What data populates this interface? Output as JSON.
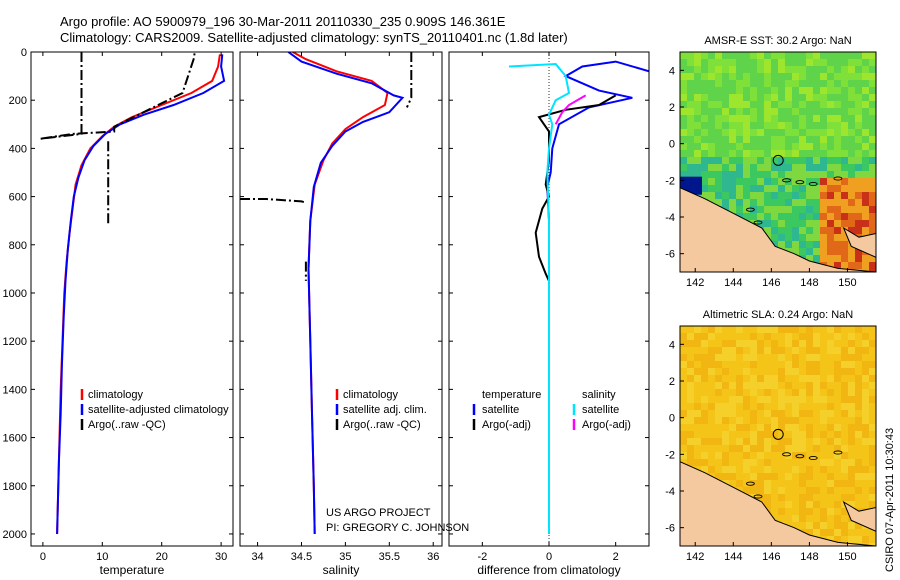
{
  "title_line1": "Argo profile: AO 5900979_196 30-Mar-2011 20110330_235 0.909S 146.361E",
  "title_line2": "Climatology: CARS2009. Satellite-adjusted climatology: synTS_20110401.nc (1.8d later)",
  "credit_line1": "US ARGO PROJECT",
  "credit_line2": "PI: GREGORY C. JOHNSON",
  "stamp": "CSIRO 07-Apr-2011 10:30:43",
  "colors": {
    "climatology": "#ff0000",
    "satellite": "#0000ff",
    "argo": "#000000",
    "sal_satellite": "#00e5ff",
    "sal_argo": "#ff00ff",
    "land": "#f5c9a0"
  },
  "chart_data": [
    {
      "type": "line",
      "xlabel": "temperature",
      "xlim": [
        -2,
        32
      ],
      "ylim": [
        2050,
        0
      ],
      "xticks": [
        0,
        10,
        20,
        30
      ],
      "yticks": [
        0,
        200,
        400,
        600,
        800,
        1000,
        1200,
        1400,
        1600,
        1800,
        2000
      ],
      "legend": [
        "climatology",
        "satellite-adjusted climatology",
        "Argo(..raw -QC)"
      ],
      "series": [
        {
          "name": "climatology",
          "points": [
            [
              29.8,
              10
            ],
            [
              29.5,
              60
            ],
            [
              28.5,
              120
            ],
            [
              25,
              170
            ],
            [
              20,
              220
            ],
            [
              15,
              270
            ],
            [
              12,
              310
            ],
            [
              10,
              350
            ],
            [
              8,
              400
            ],
            [
              6.5,
              470
            ],
            [
              5.5,
              550
            ],
            [
              5,
              650
            ],
            [
              4.5,
              750
            ],
            [
              4,
              870
            ],
            [
              3.6,
              1000
            ],
            [
              3.3,
              1200
            ],
            [
              3,
              1400
            ],
            [
              2.8,
              1600
            ],
            [
              2.6,
              1800
            ],
            [
              2.4,
              2000
            ]
          ]
        },
        {
          "name": "satellite-adjusted climatology",
          "points": [
            [
              30.2,
              10
            ],
            [
              30,
              60
            ],
            [
              30.5,
              120
            ],
            [
              27,
              170
            ],
            [
              22,
              220
            ],
            [
              17,
              260
            ],
            [
              13,
              300
            ],
            [
              10.5,
              340
            ],
            [
              8.5,
              390
            ],
            [
              7,
              450
            ],
            [
              6,
              520
            ],
            [
              5.2,
              600
            ],
            [
              4.7,
              700
            ],
            [
              4.2,
              820
            ],
            [
              3.8,
              950
            ],
            [
              3.5,
              1100
            ],
            [
              3.2,
              1300
            ],
            [
              3,
              1500
            ],
            [
              2.7,
              1700
            ],
            [
              2.5,
              1900
            ],
            [
              2.4,
              2000
            ]
          ]
        },
        {
          "name": "Argo(..raw -QC)",
          "points": [
            [
              6.5,
              0
            ],
            [
              6.5,
              200
            ],
            [
              6.5,
              300
            ],
            [
              6.5,
              340
            ],
            [
              -0.5,
              360
            ],
            [
              5,
              340
            ],
            [
              12,
              330
            ],
            [
              12,
              310
            ],
            [
              23.5,
              170
            ],
            [
              25.5,
              20
            ],
            [
              25.5,
              0
            ]
          ]
        },
        {
          "name": "Argo(..raw -QC)",
          "points": [
            [
              11,
              370
            ],
            [
              11,
              500
            ],
            [
              11,
              600
            ],
            [
              11,
              720
            ]
          ]
        }
      ]
    },
    {
      "type": "line",
      "xlabel": "salinity",
      "xlim": [
        33.8,
        36.1
      ],
      "ylim": [
        2050,
        0
      ],
      "xticks": [
        34,
        34.5,
        35,
        35.5,
        36
      ],
      "legend": [
        "climatology",
        "satellite adj. clim.",
        "Argo(..raw -QC)"
      ],
      "series": [
        {
          "name": "climatology",
          "points": [
            [
              34.4,
              0
            ],
            [
              34.55,
              30
            ],
            [
              34.9,
              80
            ],
            [
              35.3,
              120
            ],
            [
              35.48,
              170
            ],
            [
              35.45,
              220
            ],
            [
              35.2,
              270
            ],
            [
              35,
              320
            ],
            [
              34.85,
              380
            ],
            [
              34.75,
              450
            ],
            [
              34.65,
              550
            ],
            [
              34.6,
              700
            ],
            [
              34.58,
              900
            ],
            [
              34.6,
              1200
            ],
            [
              34.62,
              1500
            ],
            [
              34.64,
              1800
            ],
            [
              34.65,
              2000
            ]
          ]
        },
        {
          "name": "satellite adj. clim.",
          "points": [
            [
              34.35,
              0
            ],
            [
              34.5,
              40
            ],
            [
              34.9,
              90
            ],
            [
              35.3,
              130
            ],
            [
              35.55,
              180
            ],
            [
              35.65,
              190
            ],
            [
              35.5,
              250
            ],
            [
              35.2,
              290
            ],
            [
              35,
              330
            ],
            [
              34.85,
              390
            ],
            [
              34.72,
              460
            ],
            [
              34.64,
              560
            ],
            [
              34.6,
              700
            ],
            [
              34.58,
              900
            ],
            [
              34.6,
              1200
            ],
            [
              34.62,
              1500
            ],
            [
              34.64,
              1800
            ],
            [
              34.65,
              2000
            ]
          ]
        },
        {
          "name": "Argo(..raw -QC)",
          "points": [
            [
              35.75,
              0
            ],
            [
              35.75,
              100
            ],
            [
              35.75,
              190
            ],
            [
              35.7,
              230
            ]
          ]
        },
        {
          "name": "Argo(..raw -QC)",
          "points": [
            [
              33.8,
              610
            ],
            [
              34.1,
              610
            ],
            [
              34.5,
              620
            ],
            [
              34.55,
              625
            ]
          ]
        },
        {
          "name": "Argo(..raw -QC)",
          "points": [
            [
              34.55,
              870
            ],
            [
              34.55,
              900
            ],
            [
              34.55,
              950
            ]
          ]
        }
      ]
    },
    {
      "type": "line",
      "xlabel": "difference from climatology",
      "xlim": [
        -3,
        3
      ],
      "ylim": [
        2050,
        0
      ],
      "xticks": [
        -2,
        0,
        2
      ],
      "legend": [
        "temperature",
        "satellite",
        "Argo(-adj)",
        "salinity",
        "satellite",
        "Argo(-adj)"
      ],
      "series": [
        {
          "name": "temperature satellite",
          "points": [
            [
              3.0,
              80
            ],
            [
              2.0,
              40
            ],
            [
              1.0,
              60
            ],
            [
              0.5,
              100
            ],
            [
              1.5,
              160
            ],
            [
              2.5,
              190
            ],
            [
              1.2,
              230
            ],
            [
              0.3,
              300
            ],
            [
              0.1,
              400
            ],
            [
              0.05,
              500
            ],
            [
              -0.05,
              560
            ],
            [
              0,
              700
            ],
            [
              0,
              1000
            ],
            [
              0,
              1400
            ],
            [
              0,
              1800
            ],
            [
              0,
              2000
            ]
          ]
        },
        {
          "name": "temperature Argo(-adj)",
          "points": [
            [
              2.0,
              180
            ],
            [
              1.5,
              220
            ],
            [
              0.5,
              240
            ],
            [
              -0.3,
              270
            ],
            [
              0,
              330
            ],
            [
              0,
              450
            ],
            [
              -0.1,
              550
            ],
            [
              0,
              600
            ],
            [
              -0.2,
              650
            ],
            [
              -0.4,
              750
            ],
            [
              -0.3,
              850
            ],
            [
              -0.1,
              920
            ],
            [
              0,
              950
            ]
          ]
        },
        {
          "name": "salinity satellite",
          "points": [
            [
              -1.2,
              60
            ],
            [
              0.2,
              50
            ],
            [
              0.5,
              100
            ],
            [
              0.6,
              170
            ],
            [
              0.2,
              200
            ],
            [
              0,
              260
            ],
            [
              0.1,
              300
            ],
            [
              0,
              400
            ],
            [
              -0.05,
              500
            ],
            [
              0,
              700
            ],
            [
              0,
              1000
            ],
            [
              0,
              1400
            ],
            [
              0,
              1800
            ],
            [
              0,
              2000
            ]
          ]
        },
        {
          "name": "salinity Argo(-adj)",
          "points": [
            [
              1.1,
              180
            ],
            [
              0.6,
              220
            ],
            [
              0.4,
              250
            ],
            [
              0.2,
              300
            ]
          ]
        }
      ]
    }
  ],
  "maps": [
    {
      "title": "AMSR-E SST: 30.2 Argo: NaN",
      "xticks": [
        142,
        144,
        146,
        148,
        150
      ],
      "yticks": [
        4,
        2,
        0,
        -2,
        -4,
        -6
      ]
    },
    {
      "title": "Altimetric SLA: 0.24 Argo: NaN",
      "xticks": [
        142,
        144,
        146,
        148,
        150
      ],
      "yticks": [
        4,
        2,
        0,
        -2,
        -4,
        -6
      ]
    }
  ]
}
